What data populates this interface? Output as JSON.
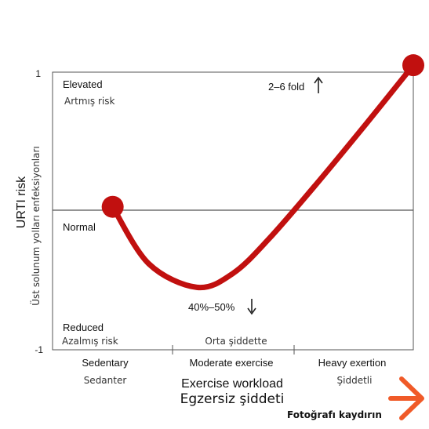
{
  "chart_data": {
    "type": "line",
    "title": "",
    "xlabel": "Exercise workload",
    "xlabel_translation": "Egzersiz şiddeti",
    "ylabel": "URTI risk",
    "ylabel_translation": "Üst solunum yolları enfeksiyonları",
    "categories": [
      {
        "label": "Sedentary",
        "translation": "Sedanter"
      },
      {
        "label": "Moderate exercise",
        "translation": "Orta şiddette"
      },
      {
        "label": "Heavy exertion",
        "translation": "Şiddetli"
      }
    ],
    "y_ticks": [
      "1",
      "-1"
    ],
    "ylim": [
      -1,
      1
    ],
    "zones": [
      {
        "label": "Elevated",
        "translation": "Artmış risk"
      },
      {
        "label": "Normal",
        "translation": ""
      },
      {
        "label": "Reduced",
        "translation": "Azalmış risk"
      }
    ],
    "annotations": [
      {
        "text": "2–6 fold",
        "arrow": "up"
      },
      {
        "text": "40%–50%",
        "arrow": "down"
      }
    ],
    "reference_line": 0,
    "series": [
      {
        "color": "#c1100f",
        "x": [
          0.5,
          0.8,
          1.2,
          1.5,
          1.8,
          2.2,
          2.6,
          3.0
        ],
        "y": [
          0.03,
          -0.38,
          -0.55,
          -0.45,
          -0.2,
          0.2,
          0.62,
          1.05
        ]
      }
    ],
    "endpoints": [
      {
        "x": 0.5,
        "y": 0.03
      },
      {
        "x": 3.0,
        "y": 1.05
      }
    ],
    "grid": false,
    "legend": "none"
  },
  "overlay": {
    "swipe_label": "Fotoğrafı kaydırın",
    "arrow_icon": "right-arrow-icon",
    "arrow_color": "#f05a28"
  }
}
